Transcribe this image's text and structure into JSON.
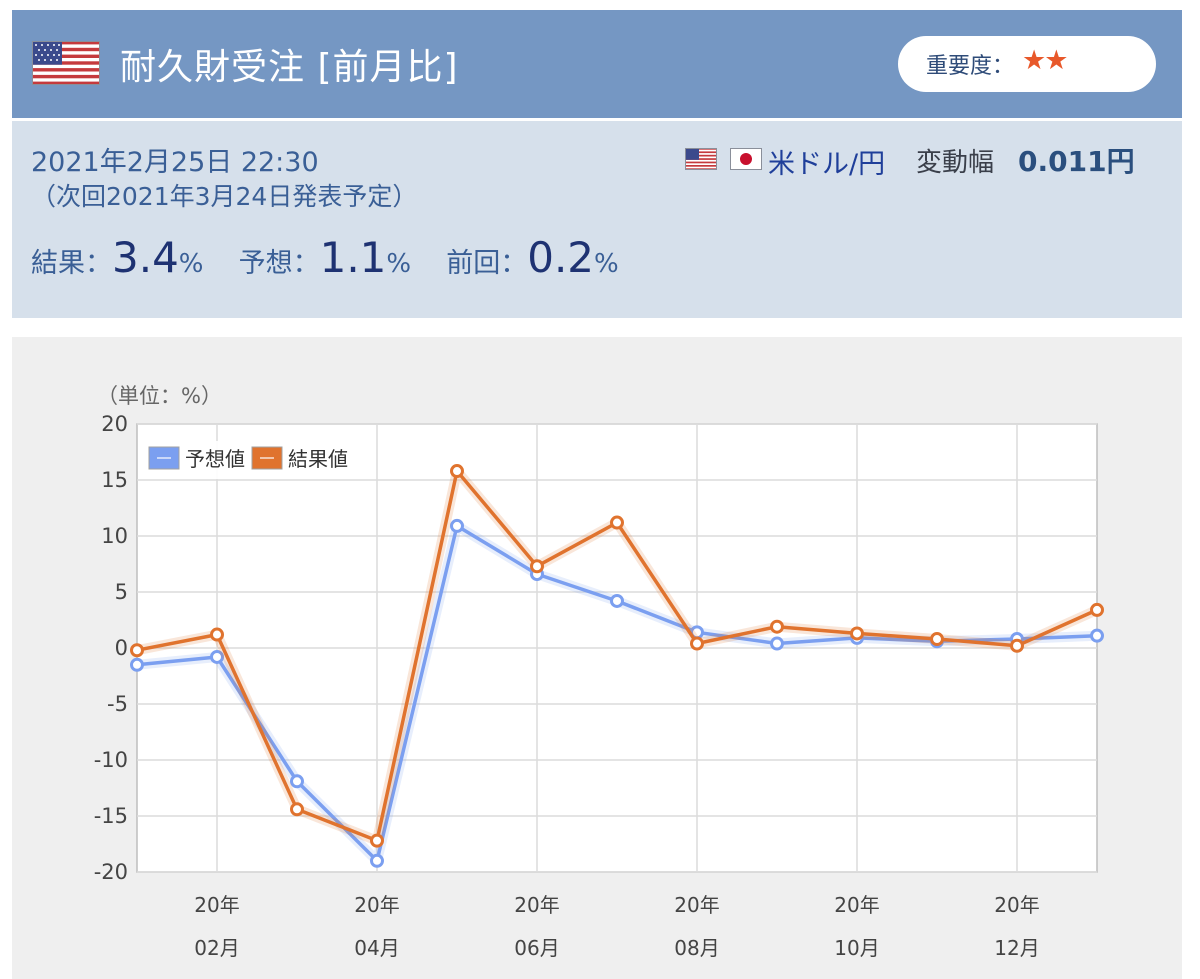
{
  "header": {
    "flag_icon": "us-flag-icon",
    "title": "耐久財受注 [前月比]",
    "importance_label": "重要度：",
    "importance_stars": "★★",
    "star_color": "#e8582a",
    "header_color": "#7597c3"
  },
  "info": {
    "datetime": "2021年2月25日 22:30",
    "next_release": "（次回2021年3月24日発表予定）",
    "pair_icons": [
      "us-flag-icon",
      "jp-flag-icon"
    ],
    "pair": "米ドル/円",
    "range_label": "変動幅",
    "range_value": "0.011円",
    "stats": [
      {
        "label": "結果：",
        "value": "3.4",
        "unit": "%"
      },
      {
        "label": "予想：",
        "value": "1.1",
        "unit": "%"
      },
      {
        "label": "前回：",
        "value": "0.2",
        "unit": "%"
      }
    ]
  },
  "chart_data": {
    "type": "line",
    "unit_label": "（単位：%）",
    "ylim": [
      -20,
      20
    ],
    "yticks": [
      "20",
      "15",
      "10",
      "5",
      "0",
      "-5",
      "-10",
      "-15",
      "-20"
    ],
    "x_labels": [
      {
        "year": "20年",
        "month": "02月"
      },
      {
        "year": "20年",
        "month": "04月"
      },
      {
        "year": "20年",
        "month": "06月"
      },
      {
        "year": "20年",
        "month": "08月"
      },
      {
        "year": "20年",
        "month": "10月"
      },
      {
        "year": "20年",
        "month": "12月"
      }
    ],
    "x": [
      "2020-01",
      "2020-02",
      "2020-03",
      "2020-04",
      "2020-05",
      "2020-06",
      "2020-07",
      "2020-08",
      "2020-09",
      "2020-10",
      "2020-11",
      "2020-12",
      "2021-01"
    ],
    "series": [
      {
        "name": "予想値",
        "color": "#7b9ff0",
        "values": [
          -1.5,
          -0.8,
          -11.9,
          -19.0,
          10.9,
          6.6,
          4.2,
          1.4,
          0.4,
          0.9,
          0.6,
          0.8,
          1.1
        ]
      },
      {
        "name": "結果値",
        "color": "#e0732e",
        "values": [
          -0.2,
          1.2,
          -14.4,
          -17.2,
          15.8,
          7.3,
          11.2,
          0.4,
          1.9,
          1.3,
          0.8,
          0.2,
          3.4
        ]
      }
    ],
    "grid": true,
    "legend_position": "top-left"
  }
}
